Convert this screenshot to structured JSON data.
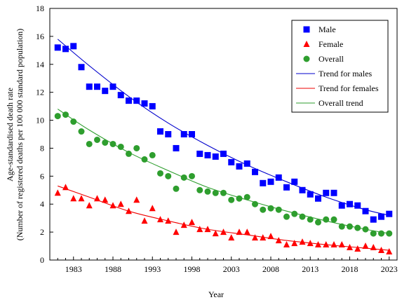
{
  "chart_data": {
    "type": "scatter",
    "title": "",
    "xlabel": "Year",
    "ylabel": [
      "Age-standardised death rate",
      "(Number of registered deaths per 100 000 standard population)"
    ],
    "xlim": [
      1980,
      2024
    ],
    "ylim": [
      0,
      18
    ],
    "xticks": [
      1983,
      1988,
      1993,
      1998,
      2003,
      2008,
      2013,
      2018,
      2023
    ],
    "yticks": [
      0,
      2,
      4,
      6,
      8,
      10,
      12,
      14,
      16,
      18
    ],
    "grid": false,
    "legend_position": "top-right",
    "x": [
      1981,
      1982,
      1983,
      1984,
      1985,
      1986,
      1987,
      1988,
      1989,
      1990,
      1991,
      1992,
      1993,
      1994,
      1995,
      1996,
      1997,
      1998,
      1999,
      2000,
      2001,
      2002,
      2003,
      2004,
      2005,
      2006,
      2007,
      2008,
      2009,
      2010,
      2011,
      2012,
      2013,
      2014,
      2015,
      2016,
      2017,
      2018,
      2019,
      2020,
      2021,
      2022,
      2023
    ],
    "series": [
      {
        "name": "Male",
        "marker": "square",
        "color": "#0000ff",
        "values": [
          15.2,
          15.1,
          15.3,
          13.8,
          12.4,
          12.4,
          12.1,
          12.4,
          11.8,
          11.4,
          11.4,
          11.2,
          11.0,
          9.2,
          9.0,
          8.0,
          9.0,
          9.0,
          7.6,
          7.5,
          7.4,
          7.6,
          7.0,
          6.7,
          6.9,
          6.3,
          5.5,
          5.6,
          5.9,
          5.2,
          5.6,
          5.0,
          4.7,
          4.4,
          4.8,
          4.8,
          3.9,
          4.0,
          3.9,
          3.5,
          2.9,
          3.1,
          3.3
        ]
      },
      {
        "name": "Female",
        "marker": "triangle",
        "color": "#ff0000",
        "values": [
          4.8,
          5.2,
          4.4,
          4.4,
          3.9,
          4.4,
          4.3,
          3.9,
          4.0,
          3.5,
          4.3,
          2.8,
          3.7,
          2.9,
          2.8,
          2.0,
          2.5,
          2.7,
          2.2,
          2.2,
          1.9,
          2.0,
          1.6,
          2.0,
          2.0,
          1.6,
          1.6,
          1.7,
          1.4,
          1.1,
          1.2,
          1.3,
          1.2,
          1.1,
          1.1,
          1.1,
          1.1,
          0.9,
          0.8,
          1.0,
          0.9,
          0.7,
          0.6
        ]
      },
      {
        "name": "Overall",
        "marker": "circle",
        "color": "#2e9e2e",
        "values": [
          10.3,
          10.4,
          9.9,
          9.2,
          8.3,
          8.6,
          8.4,
          8.3,
          8.1,
          7.6,
          8.0,
          7.2,
          7.5,
          6.2,
          6.0,
          5.1,
          5.9,
          6.0,
          5.0,
          4.9,
          4.8,
          4.8,
          4.3,
          4.4,
          4.5,
          4.0,
          3.6,
          3.7,
          3.6,
          3.1,
          3.3,
          3.1,
          2.9,
          2.7,
          2.9,
          2.9,
          2.4,
          2.4,
          2.3,
          2.2,
          1.9,
          1.9,
          1.9
        ]
      }
    ],
    "trends": [
      {
        "name": "Trend for males",
        "color": "#0000cc",
        "x": [
          1981,
          1985,
          1990,
          1995,
          2000,
          2005,
          2010,
          2015,
          2020,
          2023
        ],
        "values": [
          15.8,
          13.9,
          11.7,
          9.8,
          8.2,
          6.8,
          5.6,
          4.5,
          3.6,
          3.2
        ]
      },
      {
        "name": "Trend for females",
        "color": "#ee0000",
        "x": [
          1981,
          1985,
          1990,
          1995,
          2000,
          2005,
          2010,
          2015,
          2020,
          2023
        ],
        "values": [
          5.3,
          4.5,
          3.5,
          2.8,
          2.2,
          1.8,
          1.4,
          1.1,
          0.85,
          0.7
        ]
      },
      {
        "name": "Overall trend",
        "color": "#2e9e2e",
        "x": [
          1981,
          1985,
          1990,
          1995,
          2000,
          2005,
          2010,
          2015,
          2020,
          2023
        ],
        "values": [
          10.8,
          9.3,
          7.7,
          6.4,
          5.2,
          4.3,
          3.5,
          2.8,
          2.2,
          1.9
        ]
      }
    ]
  }
}
